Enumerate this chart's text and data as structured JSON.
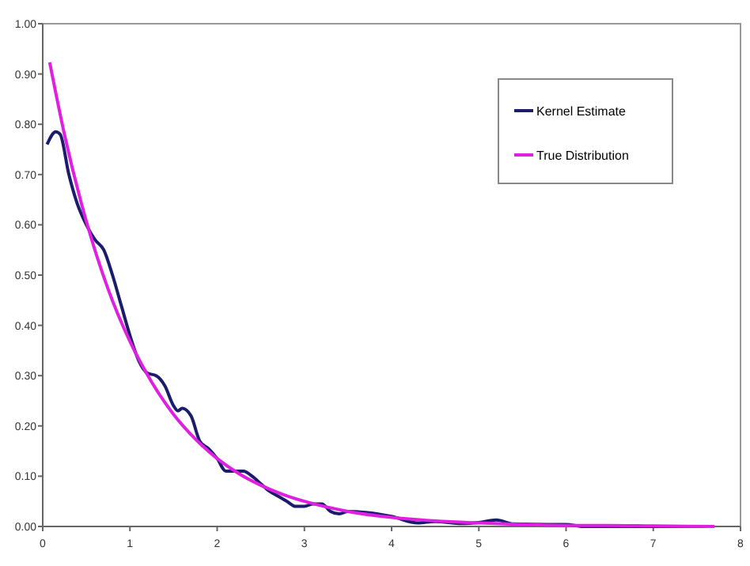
{
  "chart_data": {
    "type": "line",
    "xlim": [
      0,
      8
    ],
    "ylim": [
      0,
      1
    ],
    "xticks": [
      0,
      1,
      2,
      3,
      4,
      5,
      6,
      7,
      8
    ],
    "yticks": [
      {
        "value": 0,
        "label": "0.00"
      },
      {
        "value": 0.1,
        "label": "0.10"
      },
      {
        "value": 0.2,
        "label": "0.20"
      },
      {
        "value": 0.3,
        "label": "0.30"
      },
      {
        "value": 0.4,
        "label": "0.40"
      },
      {
        "value": 0.5,
        "label": "0.50"
      },
      {
        "value": 0.6,
        "label": "0.60"
      },
      {
        "value": 0.7,
        "label": "0.70"
      },
      {
        "value": 0.8,
        "label": "0.80"
      },
      {
        "value": 0.9,
        "label": "0.90"
      },
      {
        "value": 1,
        "label": "1.00"
      }
    ],
    "grid": false,
    "legend": "top right",
    "marker": "none",
    "line_style": "solid",
    "series": [
      {
        "name": "Kernel Estimate",
        "color": "#1c1c6c",
        "x": [
          0.05,
          0.15,
          0.2,
          0.3,
          0.4,
          0.5,
          0.6,
          0.7,
          0.8,
          0.9,
          1.0,
          1.1,
          1.2,
          1.3,
          1.4,
          1.5,
          1.55,
          1.6,
          1.7,
          1.8,
          1.9,
          2.0,
          2.1,
          2.2,
          2.3,
          2.4,
          2.5,
          2.6,
          2.7,
          2.8,
          2.9,
          3.0,
          3.1,
          3.2,
          3.3,
          3.4,
          3.5,
          3.7,
          4.0,
          4.3,
          4.5,
          4.8,
          5.0,
          5.2,
          5.4,
          5.8,
          6.0,
          6.2,
          7.0,
          7.6
        ],
        "values": [
          0.76,
          0.785,
          0.78,
          0.7,
          0.64,
          0.6,
          0.57,
          0.55,
          0.5,
          0.44,
          0.38,
          0.33,
          0.305,
          0.3,
          0.28,
          0.24,
          0.23,
          0.235,
          0.22,
          0.17,
          0.155,
          0.135,
          0.11,
          0.11,
          0.11,
          0.1,
          0.085,
          0.07,
          0.06,
          0.05,
          0.04,
          0.04,
          0.045,
          0.045,
          0.03,
          0.025,
          0.03,
          0.028,
          0.02,
          0.007,
          0.01,
          0.006,
          0.008,
          0.013,
          0.005,
          0.004,
          0.004,
          0,
          0,
          0
        ]
      },
      {
        "name": "True Distribution",
        "color": "#e020e0",
        "x": [
          0.08,
          0.25,
          0.5,
          0.75,
          1,
          1.25,
          1.5,
          1.75,
          2,
          2.25,
          2.5,
          2.75,
          3,
          3.5,
          4,
          4.5,
          5,
          5.5,
          6,
          6.5,
          7,
          7.7
        ],
        "values": [
          0.923,
          0.779,
          0.607,
          0.472,
          0.368,
          0.287,
          0.223,
          0.174,
          0.135,
          0.105,
          0.082,
          0.064,
          0.05,
          0.03,
          0.018,
          0.011,
          0.007,
          0.004,
          0.002,
          0.002,
          0.001,
          0
        ]
      }
    ]
  }
}
